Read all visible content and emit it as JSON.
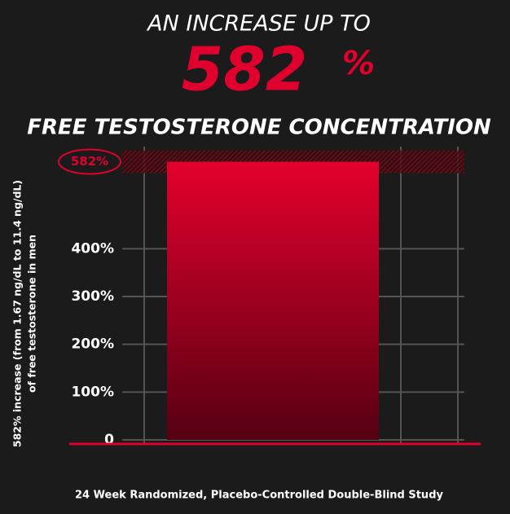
{
  "chart_data": {
    "type": "bar",
    "pretitle": "AN INCREASE UP TO",
    "headline_number": "582",
    "headline_unit": "%",
    "title": "FREE TESTOSTERONE CONCENTRATION",
    "ylabel": [
      "582% increase  (from 1.67 ng/dL to 11.4 ng/dL)",
      "of free testosterone in men"
    ],
    "note": "24 Week Randomized, Placebo-Controlled Double-Blind Study",
    "values": [
      582
    ],
    "value_labels": [
      "582%"
    ],
    "color": "#e0002e",
    "ylim": [
      0,
      600
    ],
    "yticks": [
      0,
      {
        "value": 100,
        "label": "100%"
      },
      {
        "value": 200,
        "label": "200%"
      },
      {
        "value": 300,
        "label": "300%"
      },
      {
        "value": 400,
        "label": "400%"
      }
    ],
    "grid": true
  }
}
